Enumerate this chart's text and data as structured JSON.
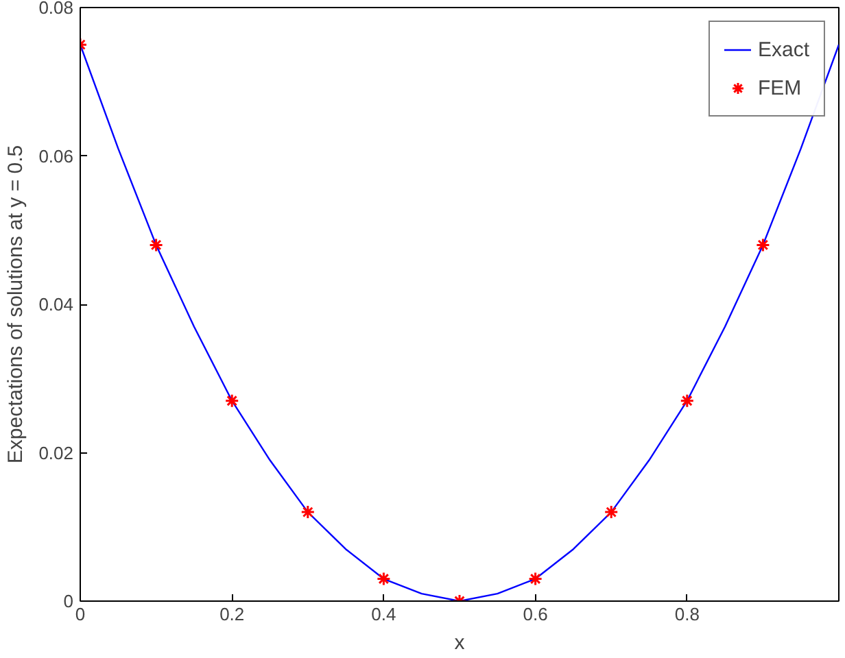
{
  "chart_data": {
    "type": "line",
    "xlabel": "x",
    "ylabel": "Expectations of solutions at y = 0.5",
    "xlim": [
      0,
      1
    ],
    "ylim": [
      0,
      0.08
    ],
    "xticks": [
      0,
      0.2,
      0.4,
      0.6,
      0.8
    ],
    "yticks": [
      0,
      0.02,
      0.04,
      0.06,
      0.08
    ],
    "grid": false,
    "legend": "top right",
    "series": [
      {
        "name": "Exact",
        "color": "#0000ff",
        "line_style": "solid",
        "x": [
          0,
          0.05,
          0.1,
          0.15,
          0.2,
          0.25,
          0.3,
          0.35,
          0.4,
          0.45,
          0.5,
          0.55,
          0.6,
          0.65,
          0.7,
          0.75,
          0.8,
          0.85,
          0.9,
          0.95,
          1
        ],
        "values": [
          0.075,
          0.061,
          0.048,
          0.037,
          0.027,
          0.019,
          0.012,
          0.007,
          0.003,
          0.001,
          0,
          0.001,
          0.003,
          0.007,
          0.012,
          0.019,
          0.027,
          0.037,
          0.048,
          0.061,
          0.075
        ]
      },
      {
        "name": "FEM",
        "type": "scatter",
        "color": "#ff0000",
        "marker": "cross",
        "x": [
          0,
          0.1,
          0.2,
          0.3,
          0.4,
          0.5,
          0.6,
          0.7,
          0.8,
          0.9
        ],
        "values": [
          0.075,
          0.048,
          0.027,
          0.012,
          0.003,
          0,
          0.003,
          0.012,
          0.027,
          0.048
        ]
      }
    ]
  }
}
